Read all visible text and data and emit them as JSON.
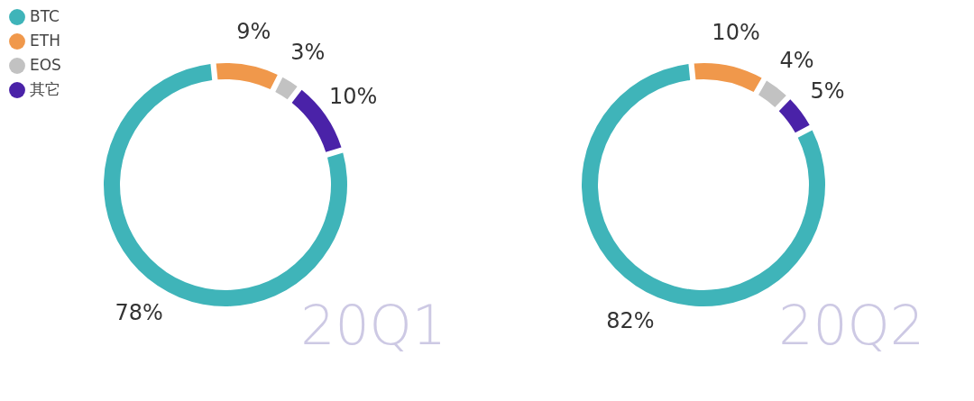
{
  "chart_data": [
    {
      "type": "donut",
      "title": "20Q1",
      "categories": [
        "BTC",
        "ETH",
        "EOS",
        "其它"
      ],
      "values": [
        78,
        9,
        3,
        10
      ],
      "colors": [
        "#3fb4b9",
        "#f0984b",
        "#c2c2c2",
        "#4a22a8"
      ],
      "value_labels": [
        "78%",
        "9%",
        "3%",
        "10%"
      ],
      "legend": "top left"
    },
    {
      "type": "donut",
      "title": "20Q2",
      "categories": [
        null,
        null,
        null,
        null
      ],
      "values": [
        82,
        10,
        4,
        5
      ],
      "colors": [
        "#3fb4b9",
        "#f0984b",
        "#c2c2c2",
        "#4a22a8"
      ],
      "value_labels": [
        "82%",
        "10%",
        "4%",
        "5%"
      ]
    }
  ]
}
